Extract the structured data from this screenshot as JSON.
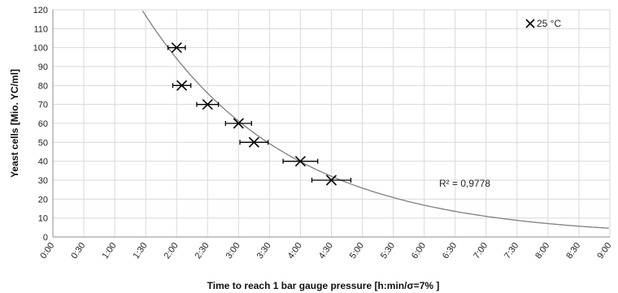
{
  "chart_data": {
    "type": "scatter",
    "title": "",
    "xlabel": "Time to reach 1 bar gauge pressure [h:min/σ=7% ]",
    "ylabel": "Yeast cells [Mio. YC/ml]",
    "x_ticks": [
      "0:00",
      "0:30",
      "1:00",
      "1:30",
      "2:00",
      "2:30",
      "3:00",
      "3:30",
      "4:00",
      "4:30",
      "5:00",
      "5:30",
      "6:00",
      "6:30",
      "7:00",
      "7:30",
      "8:00",
      "8:30",
      "9:00"
    ],
    "xlim_minutes": [
      0,
      540
    ],
    "ylim": [
      0,
      120
    ],
    "y_ticks": [
      0,
      10,
      20,
      30,
      40,
      50,
      60,
      70,
      80,
      90,
      100,
      110,
      120
    ],
    "grid": true,
    "legend_position": "top-right",
    "series": [
      {
        "name": "25 °C",
        "marker": "x",
        "color": "#000000",
        "points": [
          {
            "x": "2:00",
            "y": 100
          },
          {
            "x": "2:05",
            "y": 80
          },
          {
            "x": "2:30",
            "y": 70
          },
          {
            "x": "3:00",
            "y": 60
          },
          {
            "x": "3:15",
            "y": 50
          },
          {
            "x": "4:00",
            "y": 40
          },
          {
            "x": "4:30",
            "y": 30
          }
        ],
        "x_error_fraction": 0.07
      }
    ],
    "trendline": {
      "type": "exponential",
      "r_squared_label": "R² = 0,9778",
      "samples": [
        {
          "x": "1:17",
          "y": 120
        },
        {
          "x": "2:00",
          "y": 96
        },
        {
          "x": "3:00",
          "y": 63
        },
        {
          "x": "4:00",
          "y": 41
        },
        {
          "x": "5:00",
          "y": 26
        },
        {
          "x": "6:00",
          "y": 17
        },
        {
          "x": "7:00",
          "y": 11
        },
        {
          "x": "8:00",
          "y": 7
        },
        {
          "x": "9:00",
          "y": 4.5
        }
      ]
    }
  }
}
